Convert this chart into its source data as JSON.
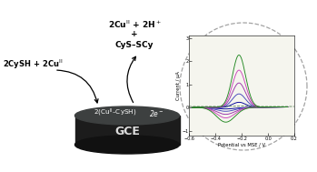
{
  "bg_color": "#ffffff",
  "electrode_color_top": "#3d4040",
  "electrode_color_side": "#1c1c1c",
  "electrode_label": "GCE",
  "electrode_label_color": "#dddddd",
  "cv_xlabel": "Potential vs MSE / V",
  "cv_ylabel": "Current / μA",
  "cv_xlim": [
    -0.6,
    0.2
  ],
  "cv_ylim": [
    -1.2,
    3.1
  ],
  "cv_xticks": [
    -0.6,
    -0.4,
    -0.2,
    0.0,
    0.2
  ],
  "cv_yticks": [
    -1,
    0,
    1,
    2,
    3
  ],
  "cv_colors": [
    "#000099",
    "#4444bb",
    "#9933aa",
    "#cc44bb",
    "#228822"
  ],
  "circle_color": "#aaaaaa",
  "figsize": [
    3.49,
    1.89
  ],
  "dpi": 100
}
